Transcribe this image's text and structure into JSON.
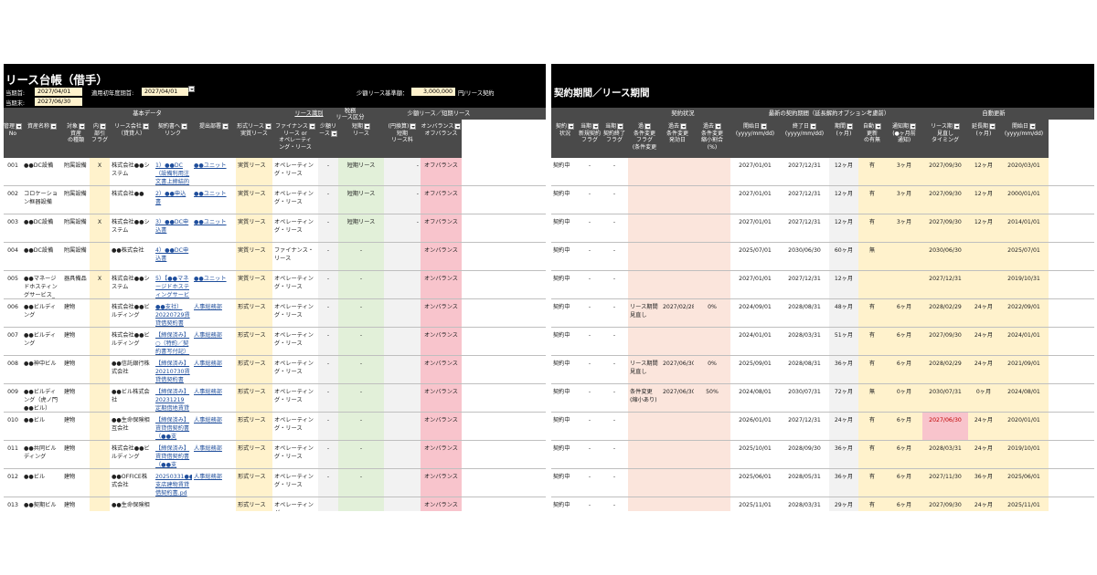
{
  "left": {
    "title": "リース台帳（借手）",
    "fields": {
      "start_label": "当期首:",
      "start_value": "2027/04/01",
      "end_label": "当期末:",
      "end_value": "2027/06/30",
      "apply_label": "適用初年度期首:",
      "apply_value": "2027/04/01",
      "small_label": "少額リース基準額：",
      "small_value": "3,000,000",
      "small_unit": "円/リース契約"
    },
    "groups": {
      "basic": "基本データ",
      "lease_type": "リース識別",
      "tax": "税務\nリース区分",
      "small_short": "少額リース／短期リース"
    },
    "headers": [
      "管理\nNo",
      "資産名称",
      "対象\n資産\nの種類",
      "内\n部引\nフラグ",
      "リース会社\n（貸貸人）",
      "契約書へ\nリンク",
      "提出部署",
      "形式リース\n実質リース",
      "ファイナンス\nリース or\nオペレーティ\nング・リース",
      "少額リース",
      "短期\nリース",
      "(円換算)\n短期\nリース料",
      "オンバランス\nオフバランス"
    ],
    "rows": [
      [
        "001",
        "●●DC設備",
        "附属設備",
        "X",
        "株式会社●●システム",
        "1）●●DC（設備利用注文書上締結的の)",
        "●●ユニット",
        "実質リース",
        "オペレーティング・リース",
        "-",
        "短期リース",
        "-",
        "オフバランス"
      ],
      [
        "002",
        "コロケーション框器設備",
        "附属設備",
        "",
        "株式会社●●",
        "2）●●申込書",
        "●●ユニット",
        "実質リース",
        "オペレーティング・リース",
        "-",
        "短期リース",
        "-",
        "オフバランス"
      ],
      [
        "003",
        "●●DC設備",
        "附属設備",
        "X",
        "株式会社●●システム",
        "3）●●DC申込書",
        "●●ユニット",
        "実質リース",
        "オペレーティング・リース",
        "-",
        "短期リース",
        "-",
        "オフバランス"
      ],
      [
        "004",
        "●●DC設備",
        "附属設備",
        "",
        "●●株式会社",
        "4）●●DC申込書",
        "",
        "実質リース",
        "ファイナンス・リース",
        "-",
        "-",
        "",
        "オンバランス"
      ],
      [
        "005",
        "●●マネージドホスティングサービス_物理サーバ",
        "器具備品",
        "X",
        "株式会社●●システム",
        "5）【●●マネージドホスティングサービス】契約",
        "●●ユニット",
        "実質リース",
        "オペレーティング・リース",
        "-",
        "-",
        "",
        "オンバランス"
      ],
      [
        "006",
        "●●ビルディング",
        "建物",
        "",
        "株式会社●●ビルディング",
        "●●支社）20220729賃貸借契約書（締",
        "人事総務部",
        "形式リース",
        "オペレーティング・リース",
        "-",
        "-",
        "",
        "オンバランス"
      ],
      [
        "007",
        "●●ビルディング",
        "建物",
        "",
        "株式会社●●ビルディング",
        "【締保済み】○（特約／契約書写付記）（締",
        "人事総務部",
        "形式リース",
        "オペレーティング・リース",
        "-",
        "-",
        "",
        "オンバランス"
      ],
      [
        "008",
        "●●神中ビル",
        "建物",
        "",
        "●●信託銀行株式会社",
        "【締保済み】20210730賃貸借契約書（●",
        "人事総務部",
        "形式リース",
        "オペレーティング・リース",
        "-",
        "-",
        "",
        "オンバランス"
      ],
      [
        "009",
        "●●ビルディング（虎ノ門●●ビル）",
        "建物",
        "",
        "●●ビル株式会社",
        "【締保済み】20231219 定期借地賃貸借契",
        "人事総務部",
        "形式リース",
        "オペレーティング・リース",
        "-",
        "-",
        "",
        "オンバランス"
      ],
      [
        "010",
        "●●ビル",
        "建物",
        "",
        "●●生命保険相互会社",
        "【締保済み】賃貸借契約書（●●支店）.pd",
        "人事総務部",
        "形式リース",
        "オペレーティング・リース",
        "-",
        "-",
        "",
        "オンバランス"
      ],
      [
        "011",
        "●●共同ビルディング",
        "建物",
        "",
        "株式会社●●ビルディング",
        "【締保済み】賃貸借契約書（●●支店）.pd",
        "人事総務部",
        "形式リース",
        "オペレーティング・リース",
        "-",
        "-",
        "",
        "オンバランス"
      ],
      [
        "012",
        "●●ビル",
        "建物",
        "",
        "●●OFFICE株式会社",
        "20250331●●支店建物賃貸借契約書.pd",
        "人事総務部",
        "形式リース",
        "オペレーティング・リース",
        "-",
        "-",
        "",
        "オンバランス"
      ],
      [
        "013",
        "●●契期ビル",
        "建物",
        "",
        "●●生命保険相",
        "",
        "",
        "形式リース",
        "オペレーティング",
        "",
        "",
        "",
        "オンバランス"
      ]
    ]
  },
  "right": {
    "title": "契約期間／リース期間",
    "groups": {
      "status": "契約状況",
      "period": "最新の契約期間（延長解約オプション考慮前）",
      "auto": "自動更新"
    },
    "headers": [
      "契約\n状況",
      "当期\n新規契約\nフラグ",
      "当期\n契約終了\nフラグ",
      "過\n条件変更\nフラグ\n(条件変更",
      "過去\n条件変更\n発効日",
      "過去\n条件変更\n縮小割合\n(%)",
      "開始日\n(yyyy/mm/dd)",
      "終了日\n(yyyy/mm/dd)",
      "期間\n(ヶ月)",
      "自動\n更新\nの有無",
      "通知期\n(●ヶ月前\n通知)",
      "リース期\n見直し\nタイミング",
      "延長期\n(ヶ月)",
      "開始日\n(yyyy/mm/dd)"
    ],
    "rows": [
      [
        "契約中",
        "-",
        "-",
        "",
        "",
        "",
        "2027/01/01",
        "2027/12/31",
        "12ヶ月",
        "有",
        "3ヶ月",
        "2027/09/30",
        "12ヶ月",
        "2020/03/01"
      ],
      [
        "契約中",
        "-",
        "-",
        "",
        "",
        "",
        "2027/01/01",
        "2027/12/31",
        "12ヶ月",
        "有",
        "3ヶ月",
        "2027/09/30",
        "12ヶ月",
        "2000/01/01"
      ],
      [
        "契約中",
        "-",
        "-",
        "",
        "",
        "",
        "2027/01/01",
        "2027/12/31",
        "12ヶ月",
        "有",
        "3ヶ月",
        "2027/09/30",
        "12ヶ月",
        "2014/01/01"
      ],
      [
        "契約中",
        "-",
        "-",
        "",
        "",
        "",
        "2025/07/01",
        "2030/06/30",
        "60ヶ月",
        "無",
        "",
        "2030/06/30",
        "",
        "2025/07/01"
      ],
      [
        "契約中",
        "-",
        "-",
        "",
        "",
        "",
        "2027/01/01",
        "2027/12/31",
        "12ヶ月",
        "",
        "",
        "2027/12/31",
        "",
        "2019/10/31"
      ],
      [
        "契約中",
        "-",
        "-",
        "リース期間見直し",
        "2027/02/28",
        "0%",
        "2024/09/01",
        "2028/08/31",
        "48ヶ月",
        "有",
        "6ヶ月",
        "2028/02/29",
        "24ヶ月",
        "2022/09/01"
      ],
      [
        "契約中",
        "-",
        "-",
        "",
        "",
        "",
        "2024/01/01",
        "2028/03/31",
        "51ヶ月",
        "有",
        "6ヶ月",
        "2027/09/30",
        "24ヶ月",
        "2024/01/01"
      ],
      [
        "契約中",
        "-",
        "-",
        "リース期間見直し",
        "2027/06/30",
        "0%",
        "2025/09/01",
        "2028/08/31",
        "36ヶ月",
        "有",
        "6ヶ月",
        "2028/02/29",
        "24ヶ月",
        "2021/09/01"
      ],
      [
        "契約中",
        "-",
        "-",
        "条件変更(縮小あり)",
        "2027/06/30",
        "50%",
        "2024/08/01",
        "2030/07/31",
        "72ヶ月",
        "無",
        "0ヶ月",
        "2030/07/31",
        "0ヶ月",
        "2024/08/01"
      ],
      [
        "契約中",
        "-",
        "-",
        "",
        "",
        "",
        "2026/01/01",
        "2027/12/31",
        "24ヶ月",
        "有",
        "6ヶ月",
        "2027/06/30",
        "24ヶ月",
        "2020/01/01"
      ],
      [
        "契約中",
        "-",
        "-",
        "",
        "",
        "",
        "2025/10/01",
        "2028/09/30",
        "36ヶ月",
        "有",
        "6ヶ月",
        "2028/03/31",
        "24ヶ月",
        "2019/10/01"
      ],
      [
        "契約中",
        "-",
        "-",
        "",
        "",
        "",
        "2025/06/01",
        "2028/05/31",
        "36ヶ月",
        "有",
        "6ヶ月",
        "2027/11/30",
        "36ヶ月",
        "2025/06/01"
      ],
      [
        "契約中",
        "-",
        "-",
        "",
        "",
        "",
        "2025/11/01",
        "2028/03/31",
        "29ヶ月",
        "有",
        "6ヶ月",
        "2027/09/30",
        "24ヶ月",
        "2025/11/01"
      ]
    ]
  },
  "colors": {
    "yellow": "#fff2cc",
    "green": "#e2f0d9",
    "pink": "#f8c4cc",
    "peach": "#fbe5dc",
    "gray": "#f2f2f2",
    "header": "#4a4a4a",
    "band": "#000000"
  },
  "icons": [
    "filter-dropdown-icon",
    "dropdown-arrow-icon"
  ]
}
